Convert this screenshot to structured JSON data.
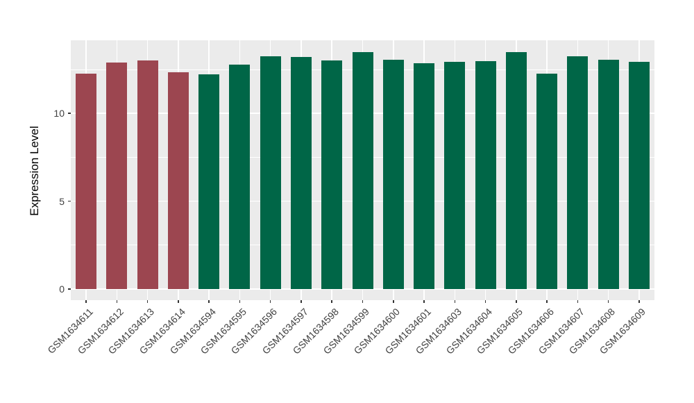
{
  "chart_data": {
    "type": "bar",
    "title": "",
    "xlabel": "",
    "ylabel": "Expression Level",
    "categories": [
      "GSM1634611",
      "GSM1634612",
      "GSM1634613",
      "GSM1634614",
      "GSM1634594",
      "GSM1634595",
      "GSM1634596",
      "GSM1634597",
      "GSM1634598",
      "GSM1634599",
      "GSM1634600",
      "GSM1634601",
      "GSM1634603",
      "GSM1634604",
      "GSM1634605",
      "GSM1634606",
      "GSM1634607",
      "GSM1634608",
      "GSM1634609"
    ],
    "values": [
      12.28,
      12.9,
      13.03,
      12.33,
      12.24,
      12.76,
      13.26,
      13.22,
      13.03,
      13.5,
      13.07,
      12.87,
      12.94,
      12.99,
      13.5,
      12.25,
      13.27,
      13.07,
      12.94
    ],
    "color_groups": [
      0,
      0,
      0,
      0,
      1,
      1,
      1,
      1,
      1,
      1,
      1,
      1,
      1,
      1,
      1,
      1,
      1,
      1,
      1
    ],
    "palette": [
      "#9C4650",
      "#006647"
    ],
    "ylim": [
      -0.63,
      14.16
    ],
    "yticks": [
      0,
      5,
      10
    ],
    "yticks_minor": [
      2.5,
      7.5,
      12.5
    ],
    "grid": true,
    "legend": "none",
    "colors": {
      "panel_bg": "#EBEBEB",
      "grid": "#FFFFFF",
      "tick_mark": "#333333",
      "tick_label": "#404040",
      "axis_title": "#000000",
      "figure_bg": "#FFFFFF"
    }
  }
}
